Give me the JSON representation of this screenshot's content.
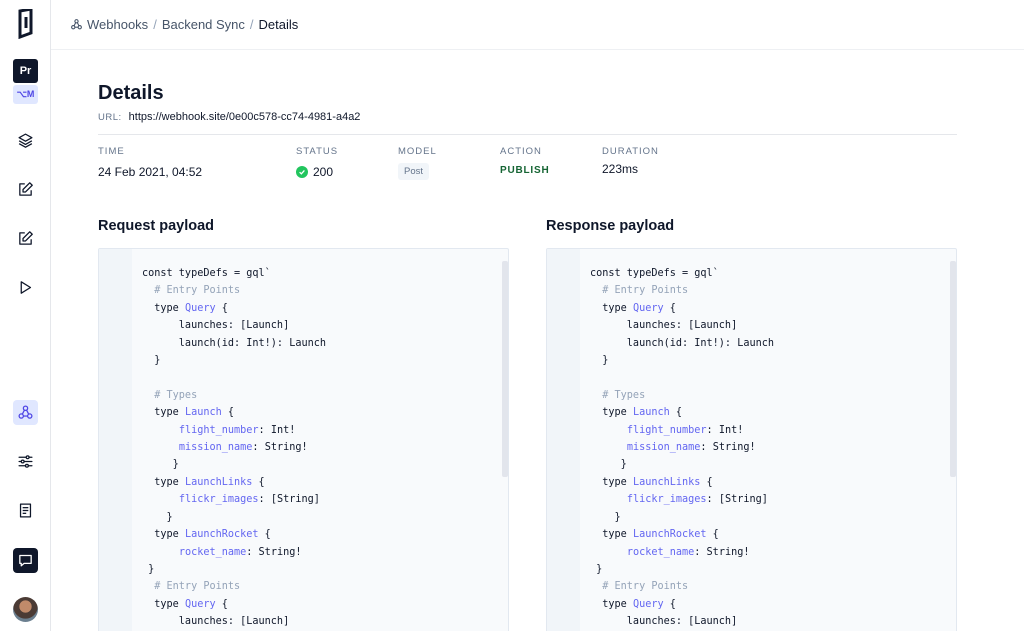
{
  "sidebar": {
    "project_badge": "Pr",
    "env_badge": "⌥M",
    "icons": [
      "layers-icon",
      "edit-icon",
      "edit-icon",
      "play-icon",
      "webhooks-icon",
      "sliders-icon",
      "document-icon",
      "chat-icon"
    ]
  },
  "breadcrumb": {
    "items": [
      "Webhooks",
      "Backend Sync"
    ],
    "current": "Details"
  },
  "details": {
    "title": "Details",
    "url_label": "URL:",
    "url": "https://webhook.site/0e00c578-cc74-4981-a4a2"
  },
  "meta": {
    "time": {
      "label": "TIME",
      "value": "24 Feb 2021, 04:52"
    },
    "status": {
      "label": "STATUS",
      "value": "200",
      "color": "#22c55e"
    },
    "model": {
      "label": "MODEL",
      "value": "Post"
    },
    "action": {
      "label": "ACTION",
      "value": "PUBLISH"
    },
    "duration": {
      "label": "DURATION",
      "value": "223ms"
    }
  },
  "request": {
    "title": "Request payload"
  },
  "response": {
    "title": "Response payload"
  },
  "payload_lines": [
    [
      [
        "",
        "const typeDefs = gql`"
      ]
    ],
    [
      [
        "c-comment",
        "  # Entry Points"
      ]
    ],
    [
      [
        "",
        "  type "
      ],
      [
        "c-type",
        "Query"
      ],
      [
        "",
        " {"
      ]
    ],
    [
      [
        "",
        "      launches: [Launch]"
      ]
    ],
    [
      [
        "",
        "      launch(id: Int!): Launch"
      ]
    ],
    [
      [
        "",
        "  }"
      ]
    ],
    [
      [
        "",
        ""
      ]
    ],
    [
      [
        "c-comment",
        "  # Types"
      ]
    ],
    [
      [
        "",
        "  type "
      ],
      [
        "c-type",
        "Launch"
      ],
      [
        "",
        " {"
      ]
    ],
    [
      [
        "",
        "      "
      ],
      [
        "c-field",
        "flight_number"
      ],
      [
        "",
        ": Int!"
      ]
    ],
    [
      [
        "",
        "      "
      ],
      [
        "c-field",
        "mission_name"
      ],
      [
        "",
        ": String!"
      ]
    ],
    [
      [
        "",
        "     }"
      ]
    ],
    [
      [
        "",
        "  type "
      ],
      [
        "c-type",
        "LaunchLinks"
      ],
      [
        "",
        " {"
      ]
    ],
    [
      [
        "",
        "      "
      ],
      [
        "c-field",
        "flickr_images"
      ],
      [
        "",
        ": [String]"
      ]
    ],
    [
      [
        "",
        "    }"
      ]
    ],
    [
      [
        "",
        "  type "
      ],
      [
        "c-type",
        "LaunchRocket"
      ],
      [
        "",
        " {"
      ]
    ],
    [
      [
        "",
        "      "
      ],
      [
        "c-field",
        "rocket_name"
      ],
      [
        "",
        ": String!"
      ]
    ],
    [
      [
        "",
        " }"
      ]
    ],
    [
      [
        "c-comment",
        "  # Entry Points"
      ]
    ],
    [
      [
        "",
        "  type "
      ],
      [
        "c-type",
        "Query"
      ],
      [
        "",
        " {"
      ]
    ],
    [
      [
        "",
        "      launches: [Launch]"
      ]
    ]
  ]
}
